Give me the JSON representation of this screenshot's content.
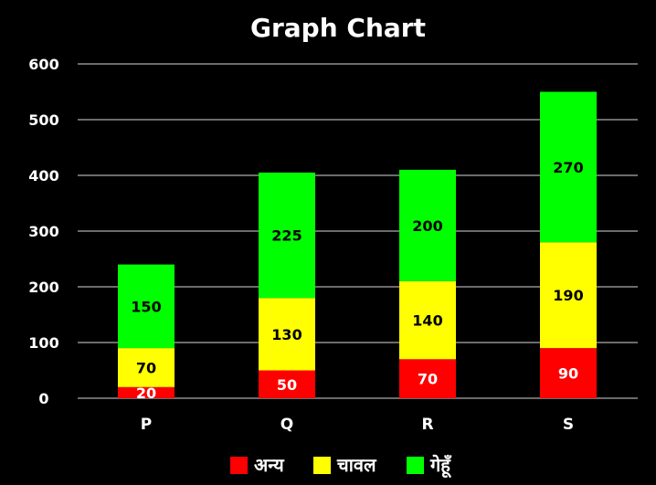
{
  "chart_data": {
    "type": "bar",
    "stacked": true,
    "title": "Graph Chart",
    "categories": [
      "P",
      "Q",
      "R",
      "S"
    ],
    "series": [
      {
        "name": "अन्य",
        "color": "#ff0000",
        "label_color": "#ffffff",
        "values": [
          20,
          50,
          70,
          90
        ]
      },
      {
        "name": "चावल",
        "color": "#ffff00",
        "label_color": "#000000",
        "values": [
          70,
          130,
          140,
          190
        ]
      },
      {
        "name": "गेहूँ",
        "color": "#00ff00",
        "label_color": "#000000",
        "values": [
          150,
          225,
          200,
          270
        ]
      }
    ],
    "ylim": [
      0,
      600
    ],
    "yticks": [
      0,
      100,
      200,
      300,
      400,
      500,
      600
    ],
    "grid": true,
    "legend_position": "bottom",
    "background": "#000000",
    "text_color": "#ffffff",
    "gridline_color": "#ffffff"
  }
}
